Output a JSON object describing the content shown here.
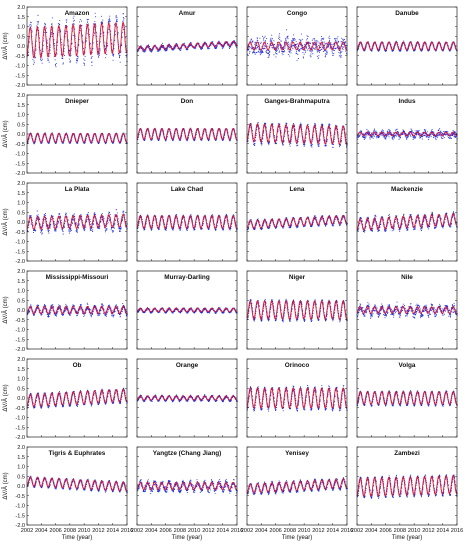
{
  "chart_data": {
    "type": "scatter",
    "layout": "6x4 grid of small multiples",
    "xlabel": "Time (year)",
    "ylabel": "ΔV/Â (cm)",
    "xlim": [
      2002,
      2016
    ],
    "ylim": [
      -2.0,
      2.0
    ],
    "x_ticks": [
      "2002",
      "2004",
      "2006",
      "2008",
      "2010",
      "2012",
      "2014",
      "2016"
    ],
    "y_ticks": [
      "2.0",
      "1.5",
      "1.0",
      "0.5",
      "0.0",
      "-0.5",
      "-1.0",
      "-1.5",
      "-2.0"
    ],
    "series_colors": {
      "observed": "#1f2ad8",
      "fitted": "#e2142d"
    },
    "panels": [
      {
        "name": "Amazon",
        "amplitude": 0.85,
        "trend": 0.02,
        "noise": 0.35,
        "offset": 0.3
      },
      {
        "name": "Amur",
        "amplitude": 0.12,
        "trend": 0.02,
        "noise": 0.06,
        "offset": 0.0
      },
      {
        "name": "Congo",
        "amplitude": 0.22,
        "trend": 0.0,
        "noise": 0.3,
        "offset": 0.0
      },
      {
        "name": "Danube",
        "amplitude": 0.22,
        "trend": 0.0,
        "noise": 0.03,
        "offset": 0.0
      },
      {
        "name": "Dnieper",
        "amplitude": 0.25,
        "trend": 0.0,
        "noise": 0.02,
        "offset": -0.2
      },
      {
        "name": "Don",
        "amplitude": 0.3,
        "trend": 0.0,
        "noise": 0.02,
        "offset": 0.0
      },
      {
        "name": "Ganges-Brahmaputra",
        "amplitude": 0.5,
        "trend": -0.01,
        "noise": 0.1,
        "offset": 0.0
      },
      {
        "name": "Indus",
        "amplitude": 0.1,
        "trend": 0.0,
        "noise": 0.12,
        "offset": 0.0
      },
      {
        "name": "La Plata",
        "amplitude": 0.35,
        "trend": 0.01,
        "noise": 0.18,
        "offset": 0.0
      },
      {
        "name": "Lake Chad",
        "amplitude": 0.35,
        "trend": 0.0,
        "noise": 0.05,
        "offset": 0.0
      },
      {
        "name": "Lena",
        "amplitude": 0.22,
        "trend": 0.02,
        "noise": 0.05,
        "offset": 0.0
      },
      {
        "name": "Mackenzie",
        "amplitude": 0.32,
        "trend": 0.02,
        "noise": 0.1,
        "offset": 0.0
      },
      {
        "name": "Mississippi-Missouri",
        "amplitude": 0.2,
        "trend": 0.0,
        "noise": 0.1,
        "offset": 0.0
      },
      {
        "name": "Murray-Darling",
        "amplitude": 0.1,
        "trend": 0.0,
        "noise": 0.04,
        "offset": 0.0
      },
      {
        "name": "Niger",
        "amplitude": 0.5,
        "trend": 0.0,
        "noise": 0.05,
        "offset": 0.0
      },
      {
        "name": "Nile",
        "amplitude": 0.18,
        "trend": 0.0,
        "noise": 0.15,
        "offset": 0.0
      },
      {
        "name": "Ob",
        "amplitude": 0.35,
        "trend": 0.02,
        "noise": 0.05,
        "offset": 0.0
      },
      {
        "name": "Orange",
        "amplitude": 0.12,
        "trend": 0.0,
        "noise": 0.04,
        "offset": 0.0
      },
      {
        "name": "Orinoco",
        "amplitude": 0.55,
        "trend": 0.0,
        "noise": 0.08,
        "offset": 0.0
      },
      {
        "name": "Volga",
        "amplitude": 0.35,
        "trend": 0.0,
        "noise": 0.04,
        "offset": 0.0
      },
      {
        "name": "Tigris & Euphrates",
        "amplitude": 0.25,
        "trend": -0.02,
        "noise": 0.04,
        "offset": 0.1
      },
      {
        "name": "Yangtze (Chang Jiang)",
        "amplitude": 0.2,
        "trend": 0.0,
        "noise": 0.12,
        "offset": 0.0
      },
      {
        "name": "Yenisey",
        "amplitude": 0.25,
        "trend": 0.02,
        "noise": 0.06,
        "offset": 0.0
      },
      {
        "name": "Zambezi",
        "amplitude": 0.5,
        "trend": 0.01,
        "noise": 0.06,
        "offset": 0.0
      }
    ]
  }
}
